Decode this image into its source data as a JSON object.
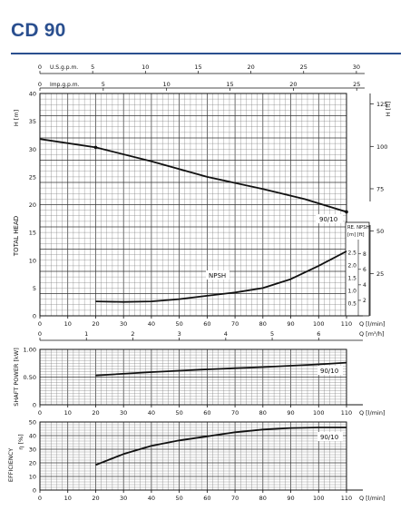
{
  "header": {
    "title": "CD 90"
  },
  "chart_data": [
    {
      "type": "line",
      "name_key": "head",
      "top_axes": [
        {
          "label": "U.S.g.p.m.",
          "ticks": [
            0,
            5,
            10,
            15,
            20,
            25,
            30
          ]
        },
        {
          "label": "Imp.g.p.m.",
          "ticks": [
            0,
            5,
            10,
            15,
            20,
            25
          ]
        }
      ],
      "left_axis": {
        "label": "H [m]",
        "ticks": [
          0,
          5,
          10,
          15,
          20,
          25,
          30,
          35,
          40
        ],
        "ylim": [
          0,
          40
        ]
      },
      "right_axis_ft": {
        "label": "H [ft]",
        "ticks": [
          75,
          100,
          125
        ]
      },
      "side_label": "TOTAL HEAD",
      "npsh_axis_m": {
        "label_top": "RE. NPSH",
        "label_units": "[m] [ft]",
        "ticks": [
          "0.5",
          "1.0",
          "1.5",
          "2.0",
          "2.5"
        ]
      },
      "npsh_axis_ft": {
        "ticks": [
          "2",
          "4",
          "6",
          "8"
        ]
      },
      "right_axis_ft_lower": {
        "ticks": [
          "25",
          "50"
        ]
      },
      "x_axis": {
        "label": "Q [l/min]",
        "ticks": [
          0,
          10,
          20,
          30,
          40,
          50,
          60,
          70,
          80,
          90,
          100,
          110
        ],
        "xlim": [
          0,
          110
        ]
      },
      "x_axis_m3h": {
        "label": "Q [m³/h]",
        "ticks": [
          0,
          1,
          2,
          3,
          4,
          5,
          6
        ]
      },
      "series": [
        {
          "name": "90/10",
          "x": [
            0,
            20,
            40,
            60,
            80,
            95,
            110
          ],
          "y": [
            31.8,
            30.3,
            27.8,
            25.0,
            22.8,
            21.0,
            18.7
          ]
        },
        {
          "name": "NPSH",
          "x": [
            20,
            30,
            40,
            50,
            60,
            70,
            80,
            90,
            100,
            110
          ],
          "y": [
            2.6,
            2.5,
            2.6,
            3.0,
            3.6,
            4.2,
            5.0,
            6.6,
            9.0,
            11.6
          ]
        }
      ]
    },
    {
      "type": "line",
      "name_key": "power",
      "side_label": "SHAFT POWER [kW]",
      "y_axis": {
        "ticks": [
          "0",
          "0.50",
          "1.00"
        ],
        "ylim": [
          0,
          1.0
        ]
      },
      "x_axis": {
        "label": "Q [l/min]",
        "ticks": [
          0,
          10,
          20,
          30,
          40,
          50,
          60,
          70,
          80,
          90,
          100,
          110
        ],
        "xlim": [
          0,
          110
        ]
      },
      "series": [
        {
          "name": "90/10",
          "x": [
            20,
            40,
            60,
            80,
            100,
            110
          ],
          "y": [
            0.53,
            0.59,
            0.64,
            0.68,
            0.73,
            0.76
          ]
        }
      ]
    },
    {
      "type": "line",
      "name_key": "efficiency",
      "side_label": "EFFICIENCY",
      "unit_label": "η [%]",
      "y_axis": {
        "ticks": [
          0,
          10,
          20,
          30,
          40,
          50
        ],
        "ylim": [
          0,
          50
        ]
      },
      "x_axis": {
        "label": "Q [l/min]",
        "ticks": [
          0,
          10,
          20,
          30,
          40,
          50,
          60,
          70,
          80,
          90,
          100,
          110
        ],
        "xlim": [
          0,
          110
        ]
      },
      "series": [
        {
          "name": "90/10",
          "x": [
            20,
            30,
            40,
            50,
            60,
            70,
            80,
            90,
            100,
            110
          ],
          "y": [
            18.5,
            26.5,
            32.5,
            36.5,
            39.5,
            42.5,
            44.5,
            45.6,
            46.0,
            46.0
          ]
        }
      ]
    }
  ]
}
